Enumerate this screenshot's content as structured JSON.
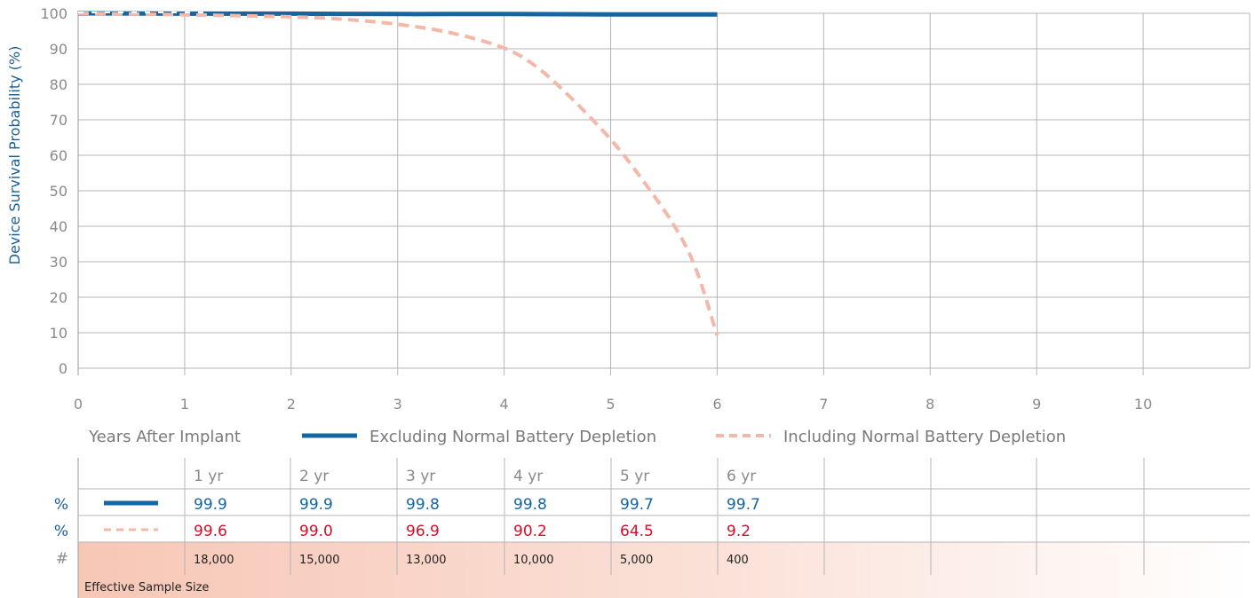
{
  "chart_data": {
    "type": "line",
    "title": "",
    "xlabel": "Years After Implant",
    "ylabel": "Device Survival Probability (%)",
    "xlim": [
      0,
      11
    ],
    "ylim": [
      0,
      100
    ],
    "x_ticks": [
      "0",
      "1",
      "2",
      "3",
      "4",
      "5",
      "6",
      "7",
      "8",
      "9",
      "10"
    ],
    "y_ticks": [
      "0",
      "10",
      "20",
      "30",
      "40",
      "50",
      "60",
      "70",
      "80",
      "90",
      "100"
    ],
    "grid": true,
    "colors": {
      "excluding": "#1565a0",
      "including": "#f4b8a8",
      "row_including_text": "#d0112b",
      "row_excluding_text": "#1565a0",
      "axis_text": "#1a5f9a"
    },
    "series": [
      {
        "name": "Excluding Normal Battery Depletion",
        "style": "solid",
        "x": [
          0,
          1,
          2,
          3,
          4,
          5,
          6
        ],
        "y": [
          100,
          99.9,
          99.9,
          99.8,
          99.8,
          99.7,
          99.7
        ]
      },
      {
        "name": "Including Normal Battery Depletion",
        "style": "dashed",
        "x": [
          0,
          1,
          2,
          2.5,
          3,
          3.5,
          4,
          4.3,
          4.6,
          5,
          5.3,
          5.6,
          5.8,
          6
        ],
        "y": [
          100,
          99.6,
          99.0,
          98.3,
          96.9,
          94.5,
          90.2,
          85,
          77,
          64.5,
          53,
          40,
          28,
          9.2
        ]
      }
    ]
  },
  "table": {
    "columns": [
      "1 yr",
      "2 yr",
      "3 yr",
      "4 yr",
      "5 yr",
      "6 yr"
    ],
    "rows": [
      {
        "label": "%",
        "values": [
          "99.9",
          "99.9",
          "99.8",
          "99.8",
          "99.7",
          "99.7"
        ]
      },
      {
        "label": "%",
        "values": [
          "99.6",
          "99.0",
          "96.9",
          "90.2",
          "64.5",
          "9.2"
        ]
      },
      {
        "label": "#",
        "values": [
          "18,000",
          "15,000",
          "13,000",
          "10,000",
          "5,000",
          "400"
        ]
      }
    ],
    "footer_label": "Effective Sample Size"
  }
}
